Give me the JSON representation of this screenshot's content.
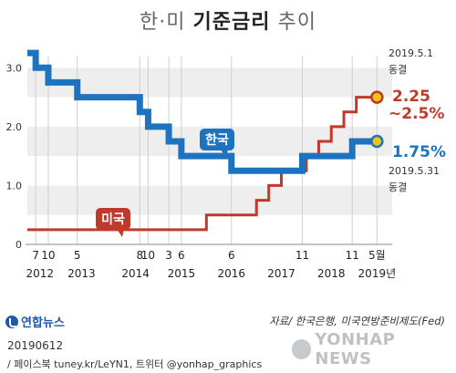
{
  "title": {
    "part1": "한·미",
    "part2": "기준금리",
    "part3": "추이"
  },
  "colors": {
    "korea": "#1e73be",
    "us": "#c0392b",
    "dot_us": "#f1c40f",
    "band": "#eeeeee"
  },
  "chart_data": {
    "type": "line",
    "title": "한·미 기준금리 추이",
    "ylim": [
      0,
      3.5
    ],
    "y_ticks": [
      0,
      1.0,
      2.0,
      3.0
    ],
    "y_tick_labels": [
      "0",
      "1.0",
      "2.0",
      "3.0"
    ],
    "x_range": [
      "2012-05-01",
      "2019-06-01"
    ],
    "month_ticks": [
      {
        "label": "7",
        "date": "2012-07"
      },
      {
        "label": "10",
        "date": "2012-10"
      },
      {
        "label": "5",
        "date": "2013-05"
      },
      {
        "label": "8",
        "date": "2014-08"
      },
      {
        "label": "10",
        "date": "2014-10"
      },
      {
        "label": "3",
        "date": "2015-03"
      },
      {
        "label": "6",
        "date": "2015-06"
      },
      {
        "label": "6",
        "date": "2016-06"
      },
      {
        "label": "11",
        "date": "2017-11"
      },
      {
        "label": "11",
        "date": "2018-11"
      },
      {
        "label": "5월",
        "date": "2019-05"
      }
    ],
    "year_ticks": [
      {
        "label": "2012",
        "date": "2012-08"
      },
      {
        "label": "2013",
        "date": "2013-06"
      },
      {
        "label": "2014",
        "date": "2014-07"
      },
      {
        "label": "2015",
        "date": "2015-06"
      },
      {
        "label": "2016",
        "date": "2016-06"
      },
      {
        "label": "2017",
        "date": "2017-06"
      },
      {
        "label": "2018",
        "date": "2018-06"
      },
      {
        "label": "2019년",
        "date": "2019-05"
      }
    ],
    "series": [
      {
        "name": "한국",
        "color": "#1e73be",
        "points": [
          {
            "date": "2012-05",
            "value": 3.25
          },
          {
            "date": "2012-07",
            "value": 3.0
          },
          {
            "date": "2012-10",
            "value": 2.75
          },
          {
            "date": "2013-05",
            "value": 2.5
          },
          {
            "date": "2014-08",
            "value": 2.25
          },
          {
            "date": "2014-10",
            "value": 2.0
          },
          {
            "date": "2015-03",
            "value": 1.75
          },
          {
            "date": "2015-06",
            "value": 1.5
          },
          {
            "date": "2016-06",
            "value": 1.25
          },
          {
            "date": "2017-11",
            "value": 1.5
          },
          {
            "date": "2018-11",
            "value": 1.75
          },
          {
            "date": "2019-05",
            "value": 1.75
          }
        ]
      },
      {
        "name": "미국",
        "color": "#c0392b",
        "points": [
          {
            "date": "2012-05",
            "value": 0.25
          },
          {
            "date": "2015-12",
            "value": 0.5
          },
          {
            "date": "2016-12",
            "value": 0.75
          },
          {
            "date": "2017-03",
            "value": 1.0
          },
          {
            "date": "2017-06",
            "value": 1.25
          },
          {
            "date": "2017-12",
            "value": 1.5
          },
          {
            "date": "2018-03",
            "value": 1.75
          },
          {
            "date": "2018-06",
            "value": 2.0
          },
          {
            "date": "2018-09",
            "value": 2.25
          },
          {
            "date": "2018-12",
            "value": 2.5
          },
          {
            "date": "2019-05",
            "value": 2.5
          }
        ]
      }
    ],
    "annotations": {
      "us_date": "2019.5.1",
      "us_status": "동결",
      "us_rate_line1": "2.25",
      "us_rate_line2": "~2.5%",
      "kr_rate": "1.75%",
      "kr_date": "2019.5.31",
      "kr_status": "동결"
    }
  },
  "source": "자료/ 한국은행, 미국연방준비제도(Fed)",
  "logo_text": "연합뉴스",
  "footer": {
    "date": "20190612",
    "sns": "/ 페이스북 tuney.kr/LeYN1, 트위터 @yonhap_graphics"
  },
  "watermark": "YONHAP NEWS"
}
